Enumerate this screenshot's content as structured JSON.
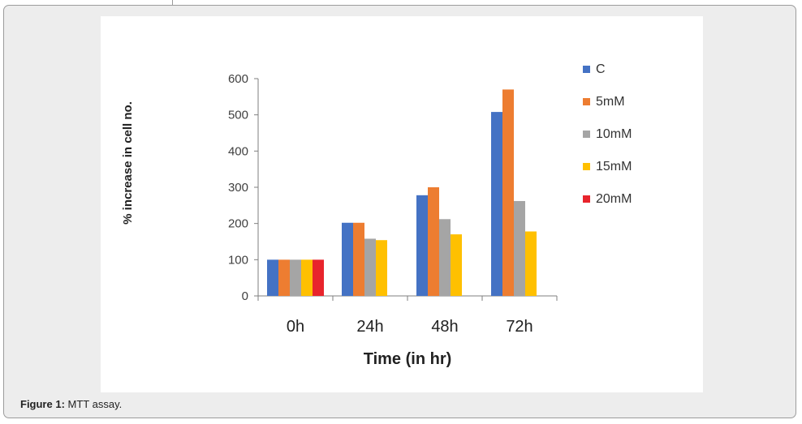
{
  "caption": {
    "label": "Figure 1:",
    "text": "MTT assay."
  },
  "chart_data": {
    "type": "bar",
    "title": "",
    "xlabel": "Time (in hr)",
    "ylabel": "% increase in cell no.",
    "categories": [
      "0h",
      "24h",
      "48h",
      "72h"
    ],
    "ylim": [
      0,
      600
    ],
    "yticks": [
      0,
      100,
      200,
      300,
      400,
      500,
      600
    ],
    "grid": false,
    "legend_position": "right",
    "series": [
      {
        "name": "C",
        "color": "#4472c4",
        "values": [
          100,
          202,
          278,
          508
        ]
      },
      {
        "name": "5mM",
        "color": "#ed7d31",
        "values": [
          100,
          202,
          300,
          570
        ]
      },
      {
        "name": "10mM",
        "color": "#a5a5a5",
        "values": [
          100,
          158,
          212,
          262
        ]
      },
      {
        "name": "15mM",
        "color": "#ffc000",
        "values": [
          100,
          154,
          170,
          178
        ]
      },
      {
        "name": "20mM",
        "color": "#e8242c",
        "values": [
          100,
          null,
          null,
          null
        ]
      }
    ]
  }
}
